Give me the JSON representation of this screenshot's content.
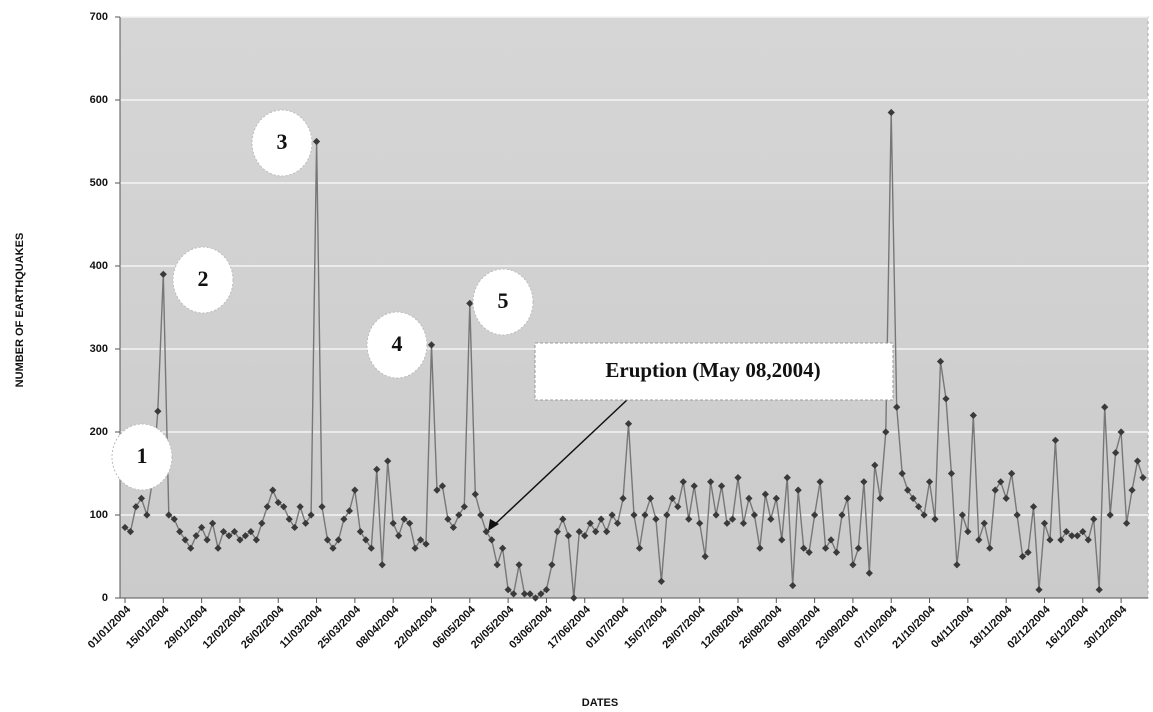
{
  "chart_data": {
    "type": "line",
    "x_label": "DATES",
    "y_label": "NUMBER OF EARTHQUAKES",
    "categories": [
      "01/01/2004",
      null,
      null,
      null,
      null,
      null,
      null,
      "15/01/2004",
      null,
      null,
      null,
      null,
      null,
      null,
      "29/01/2004",
      null,
      null,
      null,
      null,
      null,
      null,
      "12/02/2004",
      null,
      null,
      null,
      null,
      null,
      null,
      "26/02/2004",
      null,
      null,
      null,
      null,
      null,
      null,
      "11/03/2004",
      null,
      null,
      null,
      null,
      null,
      null,
      "25/03/2004",
      null,
      null,
      null,
      null,
      null,
      null,
      "08/04/2004",
      null,
      null,
      null,
      null,
      null,
      null,
      "22/04/2004",
      null,
      null,
      null,
      null,
      null,
      null,
      "06/05/2004",
      null,
      null,
      null,
      null,
      null,
      null,
      "20/05/2004",
      null,
      null,
      null,
      null,
      null,
      null,
      "03/06/2004",
      null,
      null,
      null,
      null,
      null,
      null,
      "17/06/2004",
      null,
      null,
      null,
      null,
      null,
      null,
      "01/07/2004",
      null,
      null,
      null,
      null,
      null,
      null,
      "15/07/2004",
      null,
      null,
      null,
      null,
      null,
      null,
      "29/07/2004",
      null,
      null,
      null,
      null,
      null,
      null,
      "12/08/2004",
      null,
      null,
      null,
      null,
      null,
      null,
      "26/08/2004",
      null,
      null,
      null,
      null,
      null,
      null,
      "09/09/2004",
      null,
      null,
      null,
      null,
      null,
      null,
      "23/09/2004",
      null,
      null,
      null,
      null,
      null,
      null,
      "07/10/2004",
      null,
      null,
      null,
      null,
      null,
      null,
      "21/10/2004",
      null,
      null,
      null,
      null,
      null,
      null,
      "04/11/2004",
      null,
      null,
      null,
      null,
      null,
      null,
      "18/11/2004",
      null,
      null,
      null,
      null,
      null,
      null,
      "02/12/2004",
      null,
      null,
      null,
      null,
      null,
      null,
      "16/12/2004",
      null,
      null,
      null,
      null,
      null,
      null,
      "30/12/2004",
      null,
      null,
      null,
      null
    ],
    "values": [
      85,
      80,
      110,
      120,
      100,
      140,
      225,
      390,
      100,
      95,
      80,
      70,
      60,
      75,
      85,
      70,
      90,
      60,
      80,
      75,
      80,
      70,
      75,
      80,
      70,
      90,
      110,
      130,
      115,
      110,
      95,
      85,
      110,
      90,
      100,
      550,
      110,
      70,
      60,
      70,
      95,
      105,
      130,
      80,
      70,
      60,
      155,
      40,
      165,
      90,
      75,
      95,
      90,
      60,
      70,
      65,
      305,
      130,
      135,
      95,
      85,
      100,
      110,
      355,
      125,
      100,
      80,
      70,
      40,
      60,
      10,
      5,
      40,
      5,
      5,
      0,
      5,
      10,
      40,
      80,
      95,
      75,
      0,
      80,
      75,
      90,
      80,
      95,
      80,
      100,
      90,
      120,
      210,
      100,
      60,
      100,
      120,
      95,
      20,
      100,
      120,
      110,
      140,
      95,
      135,
      90,
      50,
      140,
      100,
      135,
      90,
      95,
      145,
      90,
      120,
      100,
      60,
      125,
      95,
      120,
      70,
      145,
      15,
      130,
      60,
      55,
      100,
      140,
      60,
      70,
      55,
      100,
      120,
      40,
      60,
      140,
      30,
      160,
      120,
      200,
      585,
      230,
      150,
      130,
      120,
      110,
      100,
      140,
      95,
      285,
      240,
      150,
      40,
      100,
      80,
      220,
      70,
      90,
      60,
      130,
      140,
      120,
      150,
      100,
      50,
      55,
      110,
      10,
      90,
      70,
      190,
      70,
      80,
      75,
      75,
      80,
      70,
      95,
      10,
      230,
      100,
      175,
      200,
      90,
      130,
      165,
      145
    ],
    "color": "#3a3a3a",
    "ylim": [
      0,
      700
    ],
    "yticks": [
      0,
      100,
      200,
      300,
      400,
      500,
      600,
      700
    ],
    "grid": true,
    "annotations": [
      "1",
      "2",
      "3",
      "4",
      "5",
      "Eruption (May 08,2004)"
    ]
  }
}
